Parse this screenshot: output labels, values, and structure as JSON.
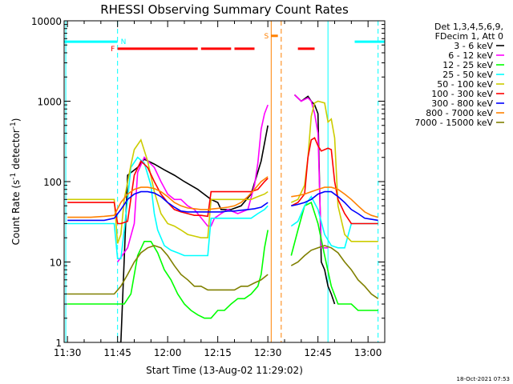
{
  "chart_data": {
    "type": "line",
    "title": "RHESSI Observing Summary Count Rates",
    "xlabel": "Start Time (13-Aug-02 11:29:02)",
    "ylabel_main": "Count Rate (s",
    "ylabel_sup1": "-1",
    "ylabel_mid": " detector",
    "ylabel_sup2": "-1",
    "ylabel_end": ")",
    "x_unit": "minutes after 11:29:02",
    "xlim": [
      0,
      96
    ],
    "ylim": [
      1,
      10000
    ],
    "yscale": "log",
    "x_ticks": [
      {
        "label": "11:30",
        "t": 1
      },
      {
        "label": "11:45",
        "t": 16
      },
      {
        "label": "12:00",
        "t": 31
      },
      {
        "label": "12:15",
        "t": 46
      },
      {
        "label": "12:30",
        "t": 61
      },
      {
        "label": "12:45",
        "t": 76
      },
      {
        "label": "13:00",
        "t": 91
      }
    ],
    "y_ticks": [
      {
        "label": "1",
        "v": 1
      },
      {
        "label": "10",
        "v": 10
      },
      {
        "label": "100",
        "v": 100
      },
      {
        "label": "1000",
        "v": 1000
      },
      {
        "label": "10000",
        "v": 10000
      }
    ],
    "legend_header": [
      "Det 1,3,4,5,6,9,",
      "FDecim 1, Att 0"
    ],
    "legend_placement": "right",
    "series": [
      {
        "name": "3 - 6 keV",
        "color": "#000000",
        "t": [
          1,
          15,
          16,
          17,
          19,
          22,
          24,
          27,
          30,
          33,
          36,
          40,
          44,
          46,
          47,
          50,
          53,
          56,
          59,
          61,
          62,
          67,
          69,
          71,
          73,
          74,
          75,
          76,
          77,
          78,
          79,
          80,
          81,
          82,
          83,
          84,
          85,
          86,
          87,
          88,
          89,
          90,
          91,
          92,
          93,
          94
        ],
        "v": [
          null,
          null,
          1,
          1,
          120,
          150,
          190,
          165,
          140,
          120,
          100,
          80,
          60,
          55,
          45,
          45,
          50,
          70,
          180,
          500,
          null,
          null,
          1200,
          1000,
          1150,
          1000,
          900,
          700,
          10,
          8,
          5,
          4,
          3,
          null,
          null,
          null,
          null,
          null,
          null,
          null,
          null,
          null,
          null,
          null,
          null,
          null
        ]
      },
      {
        "name": "6 - 12 keV",
        "color": "#ff00ff",
        "t": [
          1,
          15,
          16,
          19,
          21,
          22,
          24,
          27,
          29,
          31,
          33,
          35,
          37,
          39,
          40,
          43,
          44,
          45,
          47,
          49,
          52,
          55,
          57,
          58,
          59,
          60,
          61,
          62,
          67,
          69,
          71,
          73,
          74,
          75,
          76,
          77,
          78,
          79
        ],
        "v": [
          null,
          null,
          10,
          15,
          30,
          130,
          200,
          150,
          100,
          70,
          60,
          60,
          50,
          45,
          40,
          28,
          28,
          35,
          40,
          45,
          40,
          45,
          90,
          170,
          450,
          700,
          900,
          null,
          null,
          1200,
          1000,
          1100,
          1000,
          700,
          400,
          15,
          15,
          15
        ]
      },
      {
        "name": "12 - 25 keV",
        "color": "#00ff00",
        "t": [
          1,
          2,
          6,
          10,
          15,
          16,
          17,
          18,
          20,
          22,
          24,
          26,
          28,
          30,
          32,
          34,
          36,
          38,
          40,
          42,
          44,
          46,
          48,
          50,
          52,
          54,
          56,
          58,
          59,
          60,
          61,
          62,
          67,
          68,
          70,
          72,
          74,
          76,
          78,
          80,
          82,
          84,
          86,
          88,
          90,
          92,
          94
        ],
        "v": [
          3,
          3,
          3,
          3,
          3,
          3,
          3,
          3,
          4,
          12,
          18,
          18,
          13,
          8,
          6,
          4,
          3,
          2.5,
          2.2,
          2,
          2,
          2.5,
          2.5,
          3,
          3.5,
          3.5,
          4,
          5,
          7,
          15,
          25,
          null,
          null,
          12,
          25,
          50,
          55,
          30,
          12,
          5,
          3,
          3,
          3,
          2.5,
          2.5,
          2.5,
          2.5
        ]
      },
      {
        "name": "25 - 50 keV",
        "color": "#00ffff",
        "t": [
          1,
          4,
          8,
          12,
          15,
          16,
          17,
          18,
          19,
          20,
          22,
          24,
          26,
          27,
          28,
          30,
          32,
          34,
          36,
          38,
          40,
          43,
          44,
          46,
          48,
          50,
          52,
          54,
          56,
          58,
          60,
          61,
          62,
          67,
          68,
          70,
          72,
          74,
          76,
          78,
          80,
          82,
          84,
          86,
          88,
          90,
          92,
          94
        ],
        "v": [
          30,
          30,
          30,
          30,
          30,
          11,
          11,
          25,
          60,
          150,
          200,
          170,
          90,
          40,
          25,
          16,
          14,
          13,
          12,
          12,
          12,
          12,
          35,
          35,
          35,
          35,
          35,
          35,
          35,
          40,
          45,
          50,
          null,
          null,
          28,
          32,
          50,
          65,
          45,
          22,
          16,
          15,
          15,
          30,
          30,
          30,
          30,
          30
        ]
      },
      {
        "name": "50 - 100 keV",
        "color": "#cccc00",
        "t": [
          1,
          4,
          8,
          12,
          15,
          16,
          17,
          18,
          20,
          21,
          23,
          25,
          27,
          29,
          31,
          33,
          35,
          37,
          39,
          41,
          43,
          44,
          46,
          48,
          50,
          52,
          54,
          56,
          58,
          60,
          61,
          62,
          67,
          68,
          70,
          72,
          73,
          74,
          75,
          76,
          78,
          79,
          80,
          81,
          82,
          84,
          86,
          88,
          90,
          92,
          94
        ],
        "v": [
          60,
          60,
          60,
          60,
          60,
          17,
          22,
          60,
          160,
          250,
          330,
          180,
          75,
          40,
          30,
          28,
          25,
          22,
          21,
          20,
          20,
          60,
          60,
          60,
          60,
          60,
          60,
          60,
          65,
          70,
          75,
          null,
          null,
          55,
          60,
          90,
          200,
          650,
          950,
          1000,
          950,
          550,
          600,
          350,
          50,
          22,
          18,
          18,
          18,
          18,
          18
        ]
      },
      {
        "name": "100 - 300 keV",
        "color": "#ff0000",
        "t": [
          1,
          4,
          8,
          12,
          15,
          16,
          17,
          19,
          21,
          23,
          25,
          27,
          29,
          31,
          33,
          35,
          37,
          39,
          41,
          43,
          44,
          46,
          48,
          50,
          52,
          54,
          56,
          58,
          60,
          61,
          62,
          67,
          68,
          70,
          72,
          73,
          74,
          75,
          76,
          77,
          78,
          79,
          80,
          81,
          82,
          84,
          86,
          88,
          90,
          92,
          94
        ],
        "v": [
          55,
          55,
          55,
          55,
          55,
          30,
          30,
          32,
          120,
          180,
          150,
          100,
          70,
          55,
          45,
          42,
          40,
          38,
          38,
          37,
          75,
          75,
          75,
          75,
          75,
          75,
          75,
          80,
          100,
          110,
          null,
          null,
          50,
          55,
          70,
          200,
          330,
          350,
          280,
          240,
          250,
          260,
          250,
          100,
          60,
          40,
          30,
          30,
          30,
          30,
          30
        ]
      },
      {
        "name": "300 - 800 keV",
        "color": "#0000ff",
        "t": [
          1,
          4,
          8,
          12,
          15,
          17,
          19,
          21,
          23,
          25,
          27,
          29,
          31,
          33,
          35,
          37,
          39,
          41,
          43,
          45,
          47,
          49,
          51,
          53,
          55,
          57,
          59,
          61,
          62,
          67,
          68,
          70,
          72,
          74,
          76,
          78,
          80,
          82,
          84,
          86,
          88,
          90,
          92,
          94
        ],
        "v": [
          33,
          33,
          33,
          33,
          35,
          45,
          60,
          70,
          75,
          75,
          72,
          65,
          55,
          48,
          43,
          42,
          42,
          42,
          42,
          42,
          42,
          43,
          43,
          44,
          45,
          46,
          48,
          55,
          null,
          null,
          50,
          52,
          55,
          60,
          70,
          75,
          75,
          65,
          55,
          45,
          40,
          35,
          34,
          33
        ]
      },
      {
        "name": "800 - 7000 keV",
        "color": "#ff8000",
        "t": [
          1,
          4,
          8,
          12,
          15,
          17,
          19,
          21,
          23,
          25,
          27,
          29,
          31,
          33,
          35,
          37,
          39,
          41,
          43,
          45,
          47,
          49,
          51,
          53,
          55,
          57,
          59,
          61,
          62,
          67,
          68,
          70,
          72,
          74,
          76,
          78,
          80,
          82,
          84,
          86,
          88,
          90,
          92,
          94
        ],
        "v": [
          36,
          36,
          36,
          37,
          38,
          55,
          70,
          80,
          85,
          85,
          82,
          75,
          65,
          55,
          50,
          47,
          46,
          45,
          45,
          46,
          47,
          48,
          50,
          55,
          65,
          80,
          100,
          115,
          null,
          null,
          65,
          67,
          70,
          75,
          80,
          85,
          85,
          80,
          70,
          60,
          50,
          42,
          38,
          36
        ]
      },
      {
        "name": "7000 - 15000 keV",
        "color": "#808000",
        "t": [
          1,
          4,
          8,
          12,
          15,
          17,
          19,
          21,
          23,
          25,
          27,
          29,
          31,
          33,
          35,
          37,
          39,
          41,
          43,
          45,
          47,
          49,
          51,
          53,
          55,
          57,
          59,
          61,
          62,
          67,
          68,
          70,
          72,
          74,
          76,
          78,
          80,
          82,
          84,
          86,
          88,
          90,
          92,
          94
        ],
        "v": [
          4,
          4,
          4,
          4,
          4,
          5,
          7,
          10,
          13,
          15,
          16,
          15,
          12,
          9,
          7,
          6,
          5,
          5,
          4.5,
          4.5,
          4.5,
          4.5,
          4.5,
          5,
          5,
          5.5,
          6,
          7,
          null,
          null,
          9,
          10,
          12,
          14,
          15,
          16,
          15,
          13,
          10,
          8,
          6,
          5,
          4,
          3.5
        ]
      }
    ],
    "annotations": [
      {
        "label": "N",
        "color": "#00ffff",
        "flag": "night",
        "intervals": [
          [
            0,
            16
          ],
          [
            87,
            96
          ]
        ],
        "level": 5500
      },
      {
        "label": "F",
        "color": "#ff0000",
        "flag": "flare",
        "intervals": [
          [
            16,
            40
          ],
          [
            41,
            50
          ],
          [
            51,
            57
          ],
          [
            70,
            75
          ]
        ],
        "level": 4500
      },
      {
        "label": "S",
        "color": "#ff8000",
        "flag": "saa",
        "intervals": [
          [
            62,
            64
          ]
        ],
        "level": 6500
      }
    ],
    "markers": [
      {
        "kind": "solid",
        "color": "#00ffff",
        "t": 0.5
      },
      {
        "kind": "dashed",
        "color": "#00ffff",
        "t": 16
      },
      {
        "kind": "solid",
        "color": "#00ffff",
        "t": 79
      },
      {
        "kind": "dashed",
        "color": "#00ffff",
        "t": 94
      },
      {
        "kind": "solid",
        "color": "#ff8000",
        "t": 62
      },
      {
        "kind": "dashed",
        "color": "#ff8000",
        "t": 65
      }
    ],
    "timestamp": "18-Oct-2021 07:53"
  }
}
